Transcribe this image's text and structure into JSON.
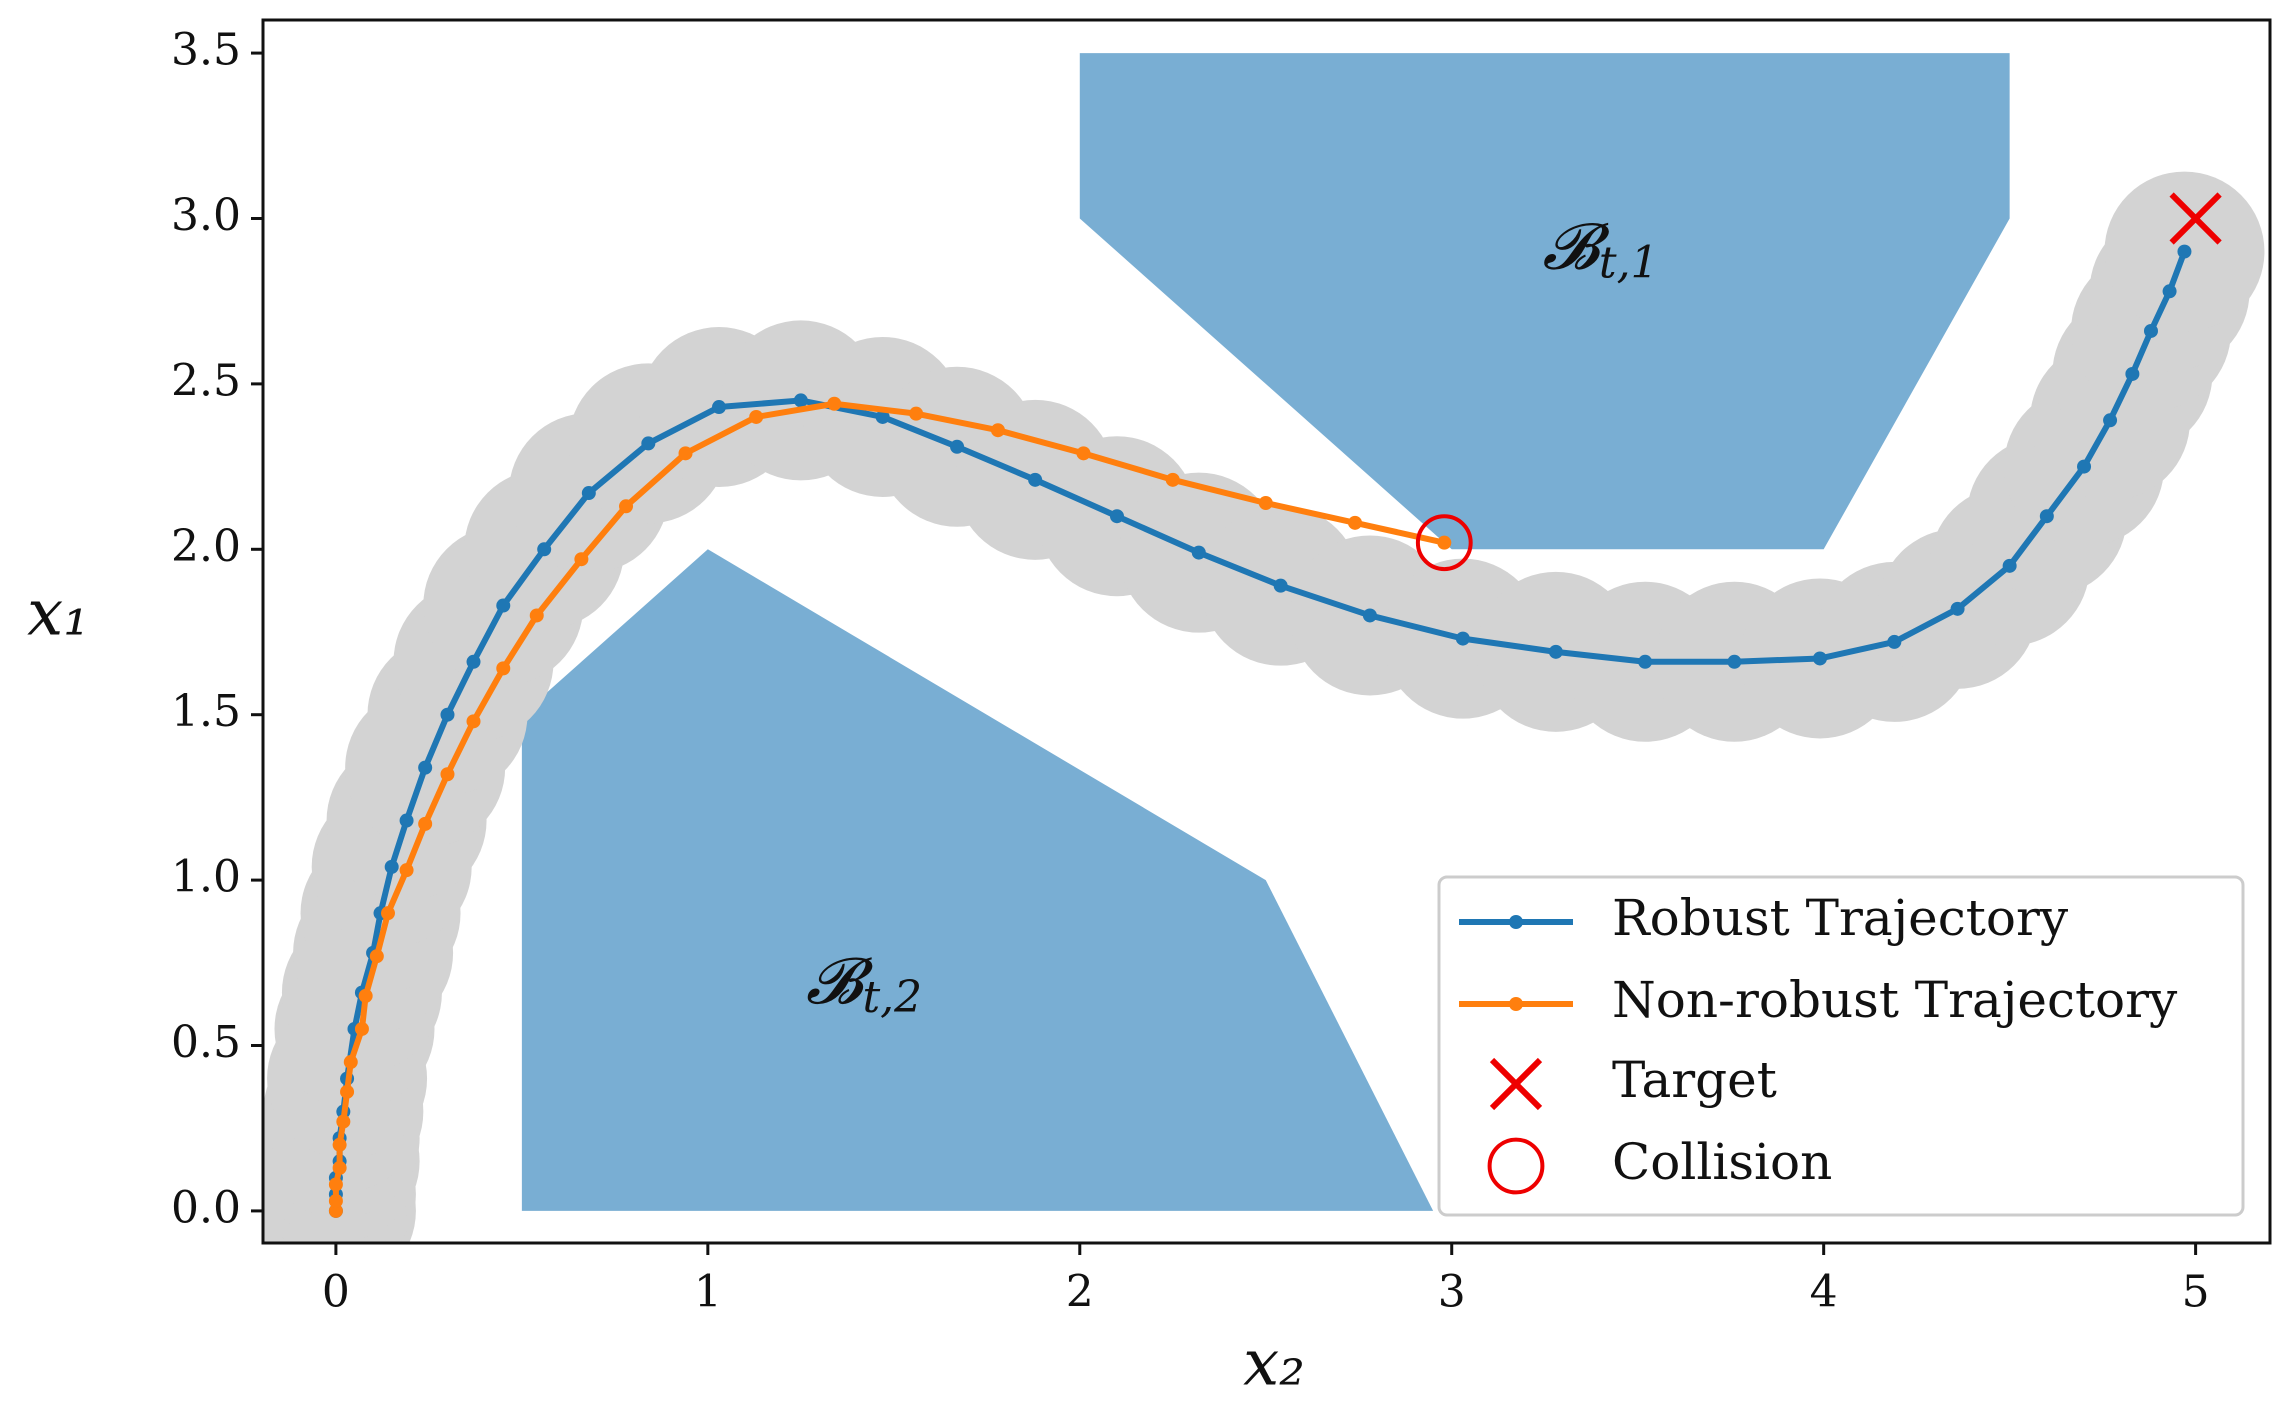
{
  "chart_data": {
    "type": "line",
    "xlabel": "x₂",
    "ylabel": "x₁",
    "xlim": [
      -0.196,
      5.2
    ],
    "ylim": [
      -0.097,
      3.6
    ],
    "xticks": [
      0,
      1,
      2,
      3,
      4,
      5
    ],
    "yticks": [
      {
        "value": 0,
        "label": "0.0"
      },
      {
        "value": 0.5,
        "label": "0.5"
      },
      {
        "value": 1,
        "label": "1.0"
      },
      {
        "value": 1.5,
        "label": "1.5"
      },
      {
        "value": 2,
        "label": "2.0"
      },
      {
        "value": 2.5,
        "label": "2.5"
      },
      {
        "value": 3,
        "label": "3.0"
      },
      {
        "value": 3.5,
        "label": "3.5"
      }
    ],
    "obstacles": [
      {
        "label": "𝓑",
        "subscript": "t,1",
        "color": "#79aed3",
        "x": [
          2,
          4.5,
          4.5,
          4,
          3,
          2
        ],
        "y": [
          3.5,
          3.5,
          3.0,
          2.0,
          2.0,
          3.0
        ]
      },
      {
        "label": "𝓑",
        "subscript": "t,2",
        "color": "#79aed3",
        "x": [
          0.5,
          2.95,
          2.5,
          1,
          0.5
        ],
        "y": [
          0,
          0,
          1.0,
          2.0,
          1.5
        ]
      }
    ],
    "series": [
      {
        "name": "Robust Trajectory",
        "color": "#1f77b4",
        "tube_color": "#d3d3d3",
        "x": [
          0,
          0,
          0,
          0.01,
          0.01,
          0.02,
          0.03,
          0.05,
          0.07,
          0.1,
          0.12,
          0.15,
          0.19,
          0.24,
          0.3,
          0.37,
          0.45,
          0.56,
          0.68,
          0.84,
          1.03,
          1.25,
          1.47,
          1.67,
          1.88,
          2.1,
          2.32,
          2.54,
          2.78,
          3.03,
          3.28,
          3.52,
          3.76,
          3.99,
          4.19,
          4.36,
          4.5,
          4.6,
          4.7,
          4.77,
          4.83,
          4.88,
          4.93,
          4.97
        ],
        "values": [
          0,
          0.05,
          0.1,
          0.15,
          0.22,
          0.3,
          0.4,
          0.55,
          0.66,
          0.78,
          0.9,
          1.04,
          1.18,
          1.34,
          1.5,
          1.66,
          1.83,
          2.0,
          2.17,
          2.32,
          2.43,
          2.45,
          2.4,
          2.31,
          2.21,
          2.1,
          1.99,
          1.89,
          1.8,
          1.73,
          1.69,
          1.66,
          1.66,
          1.67,
          1.72,
          1.82,
          1.95,
          2.1,
          2.25,
          2.39,
          2.53,
          2.66,
          2.78,
          2.9
        ]
      },
      {
        "name": "Non-robust Trajectory",
        "color": "#ff7f0e",
        "x": [
          0,
          0,
          0,
          0.01,
          0.01,
          0.02,
          0.03,
          0.04,
          0.07,
          0.08,
          0.11,
          0.14,
          0.19,
          0.24,
          0.3,
          0.37,
          0.45,
          0.54,
          0.66,
          0.78,
          0.94,
          1.13,
          1.34,
          1.56,
          1.78,
          2.01,
          2.25,
          2.5,
          2.74,
          2.98
        ],
        "values": [
          0,
          0.03,
          0.08,
          0.13,
          0.2,
          0.27,
          0.36,
          0.45,
          0.55,
          0.65,
          0.77,
          0.9,
          1.03,
          1.17,
          1.32,
          1.48,
          1.64,
          1.8,
          1.97,
          2.13,
          2.29,
          2.4,
          2.44,
          2.41,
          2.36,
          2.29,
          2.21,
          2.14,
          2.08,
          2.02
        ]
      }
    ],
    "markers": [
      {
        "name": "Target",
        "shape": "x",
        "color": "#ee0000",
        "x": 5,
        "y": 3
      },
      {
        "name": "Collision",
        "shape": "circle",
        "color": "#ee0000",
        "x": 2.98,
        "y": 2.02
      }
    ]
  }
}
